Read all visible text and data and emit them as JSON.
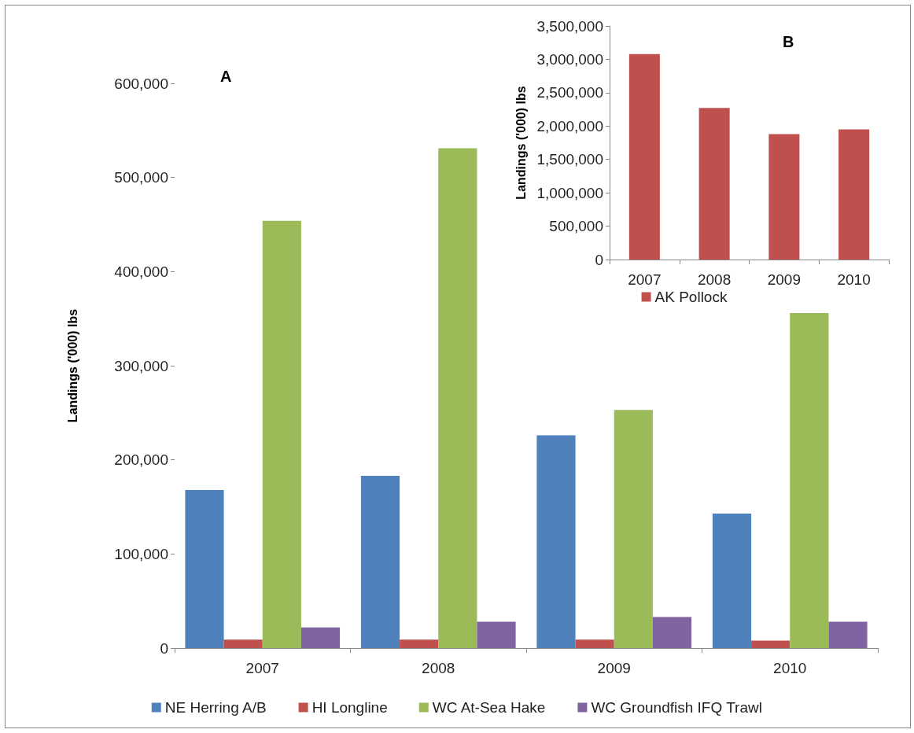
{
  "chart_data": [
    {
      "type": "bar",
      "title": "A",
      "ylabel": "Landings ('000) lbs",
      "categories": [
        "2007",
        "2008",
        "2009",
        "2010"
      ],
      "series": [
        {
          "name": "NE Herring A/B",
          "color": "#4f81bd",
          "values": [
            168000,
            183000,
            226000,
            143000
          ]
        },
        {
          "name": "HI Longline",
          "color": "#c0504d",
          "values": [
            9000,
            9000,
            9000,
            8000
          ]
        },
        {
          "name": "WC At-Sea Hake",
          "color": "#9bbb59",
          "values": [
            454000,
            531000,
            253000,
            356000
          ]
        },
        {
          "name": "WC Groundfish IFQ Trawl",
          "color": "#8064a2",
          "values": [
            22000,
            28000,
            33000,
            28000
          ]
        }
      ],
      "ylim": [
        0,
        600000
      ],
      "yticks": [
        0,
        {
          "value": 100000,
          "label": "100,000"
        },
        {
          "value": 200000,
          "label": "200,000"
        },
        {
          "value": 300000,
          "label": "300,000"
        },
        {
          "value": 400000,
          "label": "400,000"
        },
        {
          "value": 500000,
          "label": "500,000"
        },
        {
          "value": 600000,
          "label": "600,000"
        }
      ],
      "grid": false,
      "legend": "bottom"
    },
    {
      "type": "bar",
      "title": "B",
      "ylabel": "Landings ('000) lbs",
      "categories": [
        "2007",
        "2008",
        "2009",
        "2010"
      ],
      "series": [
        {
          "name": "AK Pollock",
          "color": "#c0504d",
          "values": [
            3080000,
            2270000,
            1880000,
            1950000
          ]
        }
      ],
      "ylim": [
        0,
        3500000
      ],
      "yticks": [
        0,
        {
          "value": 500000,
          "label": "500,000"
        },
        {
          "value": 1000000,
          "label": "1,000,000"
        },
        {
          "value": 1500000,
          "label": "1,500,000"
        },
        {
          "value": 2000000,
          "label": "2,000,000"
        },
        {
          "value": 2500000,
          "label": "2,500,000"
        },
        {
          "value": 3000000,
          "label": "3,000,000"
        },
        {
          "value": 3500000,
          "label": "3,500,000"
        }
      ],
      "grid": false,
      "legend": "bottom"
    }
  ]
}
